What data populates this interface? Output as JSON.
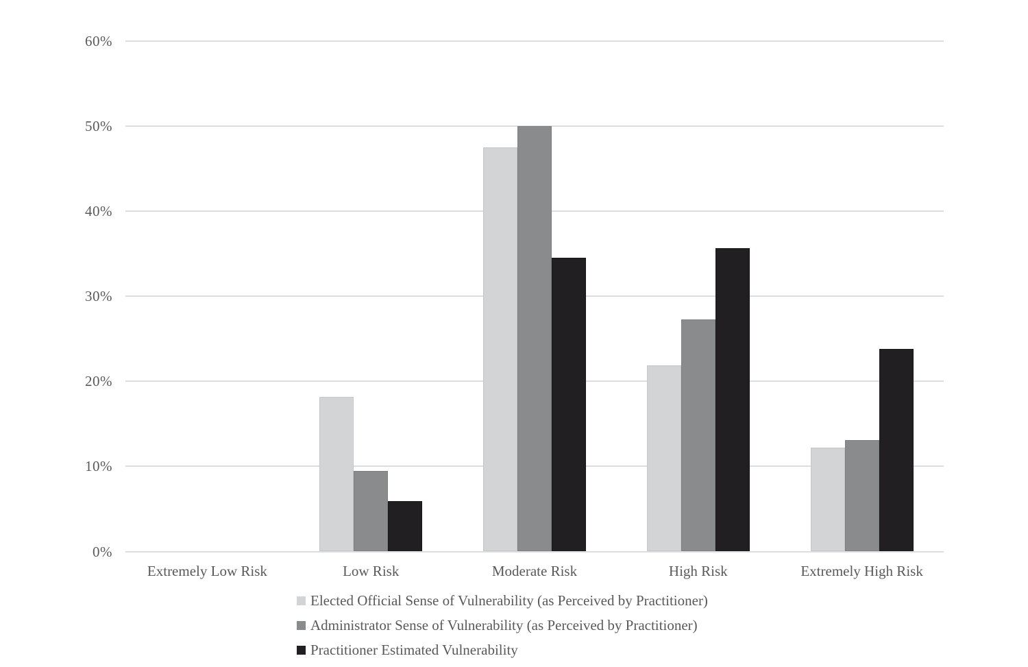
{
  "chart_data": {
    "type": "bar",
    "title": "",
    "xlabel": "",
    "ylabel": "",
    "categories": [
      "Extremely Low Risk",
      "Low Risk",
      "Moderate Risk",
      "High Risk",
      "Extremely High Risk"
    ],
    "series": [
      {
        "name": "Elected Official Sense of Vulnerability (as Perceived by Practitioner)",
        "color": "#d3d4d6",
        "border_color": "#c5c6c8",
        "values": [
          0,
          18.2,
          47.5,
          21.9,
          12.2
        ]
      },
      {
        "name": "Administrator Sense of Vulnerability (as Perceived by Practitioner)",
        "color": "#8a8b8d",
        "border_color": "#7d7e80",
        "values": [
          0,
          9.5,
          50.0,
          27.3,
          13.1
        ]
      },
      {
        "name": "Practitioner Estimated Vulnerability",
        "color": "#221f22",
        "border_color": "#1a171a",
        "values": [
          0,
          5.9,
          34.5,
          35.7,
          23.8
        ]
      }
    ],
    "ylim": [
      0,
      60
    ],
    "ytick_step": 10,
    "yticks": [
      "0%",
      "10%",
      "20%",
      "30%",
      "40%",
      "50%",
      "60%"
    ],
    "grid": true,
    "gridline_color": "#dcdddf",
    "text_color": "#595959",
    "legend_position": "bottom-left",
    "background": "#ffffff"
  }
}
